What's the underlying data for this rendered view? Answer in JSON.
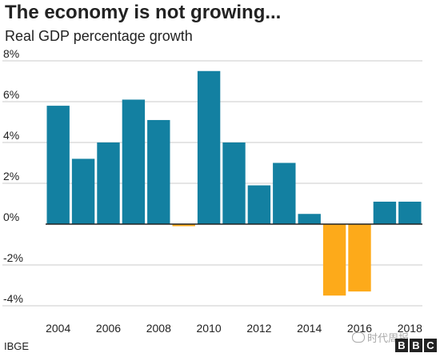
{
  "header": {
    "title": "The economy is not growing...",
    "subtitle": "Real GDP percentage growth"
  },
  "footer": {
    "source": "IBGE",
    "watermark": "时代周报",
    "logo_letters": [
      "B",
      "B",
      "C"
    ]
  },
  "colors": {
    "positive": "#1380a1",
    "negative": "#fdaa1a",
    "grid": "#cbcbcb",
    "baseline": "#222222"
  },
  "chart_data": {
    "type": "bar",
    "title": "The economy is not growing...",
    "subtitle": "Real GDP percentage growth",
    "categories": [
      "2004",
      "2005",
      "2006",
      "2007",
      "2008",
      "2009",
      "2010",
      "2011",
      "2012",
      "2013",
      "2014",
      "2015",
      "2016",
      "2017",
      "2018"
    ],
    "values": [
      5.8,
      3.2,
      4.0,
      6.1,
      5.1,
      -0.1,
      7.5,
      4.0,
      1.9,
      3.0,
      0.5,
      -3.5,
      -3.3,
      1.1,
      1.1
    ],
    "xtick_labels": [
      "2004",
      "2006",
      "2008",
      "2010",
      "2012",
      "2014",
      "2016",
      "2018"
    ],
    "yticks": [
      -4,
      -2,
      0,
      2,
      4,
      6,
      8
    ],
    "ytick_labels": [
      "-4%",
      "-2%",
      "0%",
      "2%",
      "4%",
      "6%",
      "8%"
    ],
    "ylim": [
      -4.5,
      8.2
    ],
    "grid": true,
    "legend": "none"
  }
}
